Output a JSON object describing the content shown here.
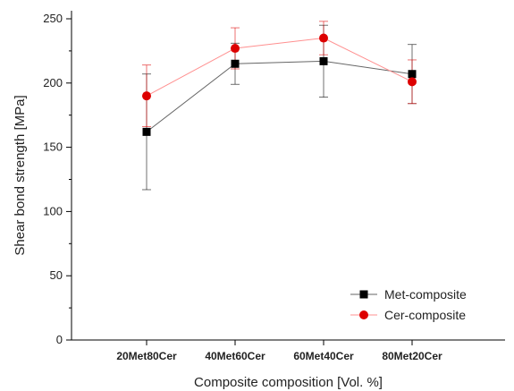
{
  "chart_data": {
    "type": "line",
    "title": "",
    "xlabel": "Composite composition [Vol. %]",
    "ylabel": "Shear bond strength [MPa]",
    "categories": [
      "20Met80Cer",
      "40Met60Cer",
      "60Met40Cer",
      "80Met20Cer"
    ],
    "ylim": [
      0,
      250
    ],
    "yticks": [
      0,
      50,
      100,
      150,
      200,
      250
    ],
    "grid": false,
    "legend_position": "bottom-right",
    "series": [
      {
        "name": "Met-composite",
        "color": "#000000",
        "marker": "square",
        "values": [
          162,
          215,
          217,
          207
        ],
        "error_low": [
          117,
          199,
          189,
          184
        ],
        "error_high": [
          207,
          231,
          245,
          230
        ]
      },
      {
        "name": "Cer-composite",
        "color": "#dd0000",
        "marker": "circle",
        "values": [
          190,
          227,
          235,
          201
        ],
        "error_low": [
          166,
          211,
          222,
          184
        ],
        "error_high": [
          214,
          243,
          248,
          218
        ]
      }
    ]
  }
}
